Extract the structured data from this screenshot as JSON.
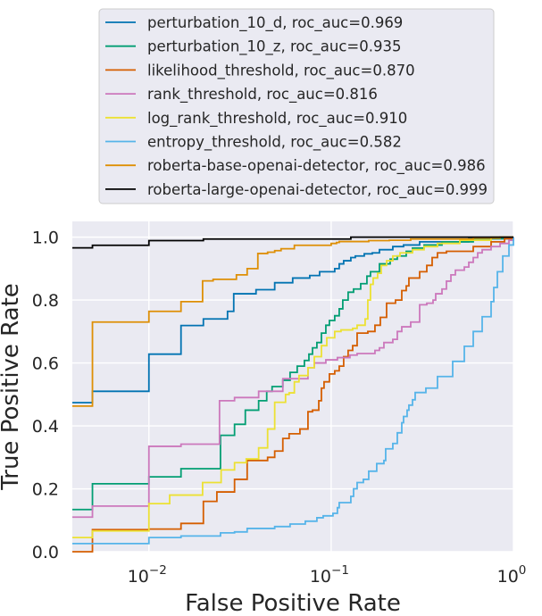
{
  "chart_data": {
    "type": "line",
    "title": "",
    "xlabel": "False Positive Rate",
    "ylabel": "True Positive Rate",
    "xscale": "log",
    "xlim": [
      0.0038,
      1.0
    ],
    "ylim": [
      0.0,
      1.05
    ],
    "grid": true,
    "legend_position": "top (above plot)",
    "background": "#eaeaf2",
    "x_ticks": [
      {
        "value": 0.01,
        "base": "10",
        "exp": "−2"
      },
      {
        "value": 0.1,
        "base": "10",
        "exp": "−1"
      },
      {
        "value": 1.0,
        "base": "10",
        "exp": "0"
      }
    ],
    "y_ticks": [
      {
        "value": 0.0,
        "label": "0.0"
      },
      {
        "value": 0.2,
        "label": "0.2"
      },
      {
        "value": 0.4,
        "label": "0.4"
      },
      {
        "value": 0.6,
        "label": "0.6"
      },
      {
        "value": 0.8,
        "label": "0.8"
      },
      {
        "value": 1.0,
        "label": "1.0"
      }
    ],
    "series": [
      {
        "name": "perturbation_10_d",
        "legend": "perturbation_10_d, roc_auc=0.969",
        "roc_auc": 0.969,
        "color": "#0173b2",
        "points": [
          [
            0.0038,
            0.474
          ],
          [
            0.0049,
            0.51
          ],
          [
            0.01,
            0.628
          ],
          [
            0.015,
            0.719
          ],
          [
            0.0199,
            0.74
          ],
          [
            0.027,
            0.764
          ],
          [
            0.0292,
            0.82
          ],
          [
            0.0387,
            0.833
          ],
          [
            0.049,
            0.855
          ],
          [
            0.0615,
            0.87
          ],
          [
            0.0763,
            0.878
          ],
          [
            0.0864,
            0.89
          ],
          [
            0.1046,
            0.9
          ],
          [
            0.1107,
            0.915
          ],
          [
            0.1171,
            0.925
          ],
          [
            0.1282,
            0.935
          ],
          [
            0.1357,
            0.94
          ],
          [
            0.1519,
            0.947
          ],
          [
            0.1681,
            0.95
          ],
          [
            0.184,
            0.96
          ],
          [
            0.2179,
            0.97
          ],
          [
            0.2495,
            0.975
          ],
          [
            0.3058,
            0.985
          ],
          [
            0.569,
            0.995
          ],
          [
            1.0,
            1.0
          ]
        ]
      },
      {
        "name": "perturbation_10_z",
        "legend": "perturbation_10_z, roc_auc=0.935",
        "roc_auc": 0.935,
        "color": "#029e73",
        "points": [
          [
            0.0038,
            0.134
          ],
          [
            0.0049,
            0.216
          ],
          [
            0.01,
            0.238
          ],
          [
            0.015,
            0.264
          ],
          [
            0.0247,
            0.37
          ],
          [
            0.0295,
            0.405
          ],
          [
            0.0338,
            0.45
          ],
          [
            0.04,
            0.48
          ],
          [
            0.0443,
            0.51
          ],
          [
            0.0474,
            0.525
          ],
          [
            0.0543,
            0.545
          ],
          [
            0.0595,
            0.57
          ],
          [
            0.0651,
            0.59
          ],
          [
            0.0713,
            0.608
          ],
          [
            0.0755,
            0.628
          ],
          [
            0.079,
            0.648
          ],
          [
            0.0835,
            0.665
          ],
          [
            0.0884,
            0.695
          ],
          [
            0.0935,
            0.72
          ],
          [
            0.0978,
            0.735
          ],
          [
            0.1046,
            0.75
          ],
          [
            0.1107,
            0.772
          ],
          [
            0.1158,
            0.8
          ],
          [
            0.1239,
            0.825
          ],
          [
            0.1327,
            0.835
          ],
          [
            0.1452,
            0.852
          ],
          [
            0.1571,
            0.876
          ],
          [
            0.1643,
            0.89
          ],
          [
            0.184,
            0.915
          ],
          [
            0.2107,
            0.93
          ],
          [
            0.2306,
            0.94
          ],
          [
            0.2581,
            0.955
          ],
          [
            0.2794,
            0.965
          ],
          [
            0.3235,
            0.975
          ],
          [
            0.4055,
            0.985
          ],
          [
            0.6019,
            0.995
          ],
          [
            1.0,
            1.0
          ]
        ]
      },
      {
        "name": "likelihood_threshold",
        "legend": "likelihood_threshold, roc_auc=0.870",
        "roc_auc": 0.87,
        "color": "#d55e00",
        "points": [
          [
            0.0038,
            0.0
          ],
          [
            0.0049,
            0.07
          ],
          [
            0.01,
            0.072
          ],
          [
            0.015,
            0.09
          ],
          [
            0.0199,
            0.16
          ],
          [
            0.0236,
            0.19
          ],
          [
            0.0295,
            0.23
          ],
          [
            0.0346,
            0.29
          ],
          [
            0.0448,
            0.3
          ],
          [
            0.049,
            0.32
          ],
          [
            0.0543,
            0.36
          ],
          [
            0.0588,
            0.375
          ],
          [
            0.0674,
            0.39
          ],
          [
            0.0746,
            0.445
          ],
          [
            0.079,
            0.45
          ],
          [
            0.0855,
            0.48
          ],
          [
            0.0884,
            0.52
          ],
          [
            0.0914,
            0.54
          ],
          [
            0.0978,
            0.565
          ],
          [
            0.1046,
            0.575
          ],
          [
            0.1107,
            0.59
          ],
          [
            0.1171,
            0.62
          ],
          [
            0.1239,
            0.64
          ],
          [
            0.1312,
            0.655
          ],
          [
            0.1388,
            0.695
          ],
          [
            0.1589,
            0.7
          ],
          [
            0.1739,
            0.72
          ],
          [
            0.1861,
            0.745
          ],
          [
            0.2014,
            0.79
          ],
          [
            0.2254,
            0.8
          ],
          [
            0.244,
            0.83
          ],
          [
            0.2581,
            0.845
          ],
          [
            0.267,
            0.87
          ],
          [
            0.3058,
            0.89
          ],
          [
            0.3347,
            0.91
          ],
          [
            0.3581,
            0.935
          ],
          [
            0.3831,
            0.95
          ],
          [
            0.429,
            0.955
          ],
          [
            0.6019,
            0.97
          ],
          [
            0.7542,
            0.985
          ],
          [
            0.8937,
            0.995
          ],
          [
            1.0,
            1.0
          ]
        ]
      },
      {
        "name": "rank_threshold",
        "legend": "rank_threshold, roc_auc=0.816",
        "roc_auc": 0.816,
        "color": "#cc78bc",
        "points": [
          [
            0.0038,
            0.11
          ],
          [
            0.0049,
            0.145
          ],
          [
            0.01,
            0.335
          ],
          [
            0.015,
            0.342
          ],
          [
            0.0244,
            0.48
          ],
          [
            0.0295,
            0.49
          ],
          [
            0.04,
            0.51
          ],
          [
            0.0543,
            0.55
          ],
          [
            0.0746,
            0.585
          ],
          [
            0.0808,
            0.6
          ],
          [
            0.0935,
            0.61
          ],
          [
            0.1082,
            0.617
          ],
          [
            0.1268,
            0.625
          ],
          [
            0.1388,
            0.63
          ],
          [
            0.1739,
            0.64
          ],
          [
            0.184,
            0.648
          ],
          [
            0.1947,
            0.665
          ],
          [
            0.2179,
            0.675
          ],
          [
            0.2306,
            0.7
          ],
          [
            0.244,
            0.715
          ],
          [
            0.2731,
            0.73
          ],
          [
            0.3058,
            0.785
          ],
          [
            0.3347,
            0.79
          ],
          [
            0.3622,
            0.8
          ],
          [
            0.3746,
            0.82
          ],
          [
            0.4055,
            0.835
          ],
          [
            0.429,
            0.86
          ],
          [
            0.454,
            0.88
          ],
          [
            0.4803,
            0.895
          ],
          [
            0.5377,
            0.905
          ],
          [
            0.569,
            0.92
          ],
          [
            0.6019,
            0.935
          ],
          [
            0.6368,
            0.95
          ],
          [
            0.6737,
            0.96
          ],
          [
            0.7542,
            0.97
          ],
          [
            0.8445,
            0.98
          ],
          [
            0.9452,
            0.99
          ],
          [
            1.0,
            1.0
          ]
        ]
      },
      {
        "name": "log_rank_threshold",
        "legend": "log_rank_threshold, roc_auc=0.910",
        "roc_auc": 0.91,
        "color": "#ece133",
        "points": [
          [
            0.0038,
            0.045
          ],
          [
            0.0049,
            0.066
          ],
          [
            0.01,
            0.153
          ],
          [
            0.013,
            0.18
          ],
          [
            0.0197,
            0.22
          ],
          [
            0.0249,
            0.26
          ],
          [
            0.0295,
            0.283
          ],
          [
            0.0342,
            0.295
          ],
          [
            0.04,
            0.33
          ],
          [
            0.0448,
            0.39
          ],
          [
            0.049,
            0.475
          ],
          [
            0.0562,
            0.5
          ],
          [
            0.0588,
            0.505
          ],
          [
            0.0628,
            0.54
          ],
          [
            0.0666,
            0.56
          ],
          [
            0.0746,
            0.585
          ],
          [
            0.0808,
            0.62
          ],
          [
            0.0884,
            0.655
          ],
          [
            0.0946,
            0.68
          ],
          [
            0.1046,
            0.7
          ],
          [
            0.1132,
            0.705
          ],
          [
            0.1312,
            0.71
          ],
          [
            0.1388,
            0.72
          ],
          [
            0.1536,
            0.74
          ],
          [
            0.1589,
            0.8
          ],
          [
            0.1643,
            0.85
          ],
          [
            0.17,
            0.87
          ],
          [
            0.1798,
            0.885
          ],
          [
            0.1882,
            0.91
          ],
          [
            0.2014,
            0.925
          ],
          [
            0.2179,
            0.94
          ],
          [
            0.2385,
            0.95
          ],
          [
            0.2794,
            0.96
          ],
          [
            0.3235,
            0.97
          ],
          [
            0.3831,
            0.98
          ],
          [
            0.5082,
            0.99
          ],
          [
            0.7542,
            1.0
          ],
          [
            1.0,
            1.0
          ]
        ]
      },
      {
        "name": "entropy_threshold",
        "legend": "entropy_threshold, roc_auc=0.582",
        "roc_auc": 0.582,
        "color": "#56b4e9",
        "points": [
          [
            0.0038,
            0.026
          ],
          [
            0.01,
            0.045
          ],
          [
            0.015,
            0.05
          ],
          [
            0.0247,
            0.06
          ],
          [
            0.0295,
            0.063
          ],
          [
            0.0346,
            0.074
          ],
          [
            0.049,
            0.08
          ],
          [
            0.0595,
            0.088
          ],
          [
            0.0721,
            0.097
          ],
          [
            0.0835,
            0.108
          ],
          [
            0.0904,
            0.114
          ],
          [
            0.1023,
            0.122
          ],
          [
            0.1082,
            0.14
          ],
          [
            0.1107,
            0.156
          ],
          [
            0.1282,
            0.176
          ],
          [
            0.1327,
            0.2
          ],
          [
            0.1388,
            0.22
          ],
          [
            0.1502,
            0.23
          ],
          [
            0.1607,
            0.256
          ],
          [
            0.1778,
            0.28
          ],
          [
            0.1947,
            0.29
          ],
          [
            0.1991,
            0.327
          ],
          [
            0.2179,
            0.344
          ],
          [
            0.2306,
            0.378
          ],
          [
            0.244,
            0.41
          ],
          [
            0.2495,
            0.43
          ],
          [
            0.261,
            0.45
          ],
          [
            0.267,
            0.466
          ],
          [
            0.2794,
            0.483
          ],
          [
            0.289,
            0.506
          ],
          [
            0.3309,
            0.52
          ],
          [
            0.3831,
            0.557
          ],
          [
            0.4642,
            0.605
          ],
          [
            0.5377,
            0.653
          ],
          [
            0.6019,
            0.7
          ],
          [
            0.6737,
            0.747
          ],
          [
            0.7542,
            0.795
          ],
          [
            0.7801,
            0.84
          ],
          [
            0.8163,
            0.89
          ],
          [
            0.8737,
            0.94
          ],
          [
            0.9452,
            0.975
          ],
          [
            1.0,
            1.0
          ]
        ]
      },
      {
        "name": "roberta-base-openai-detector",
        "legend": "roberta-base-openai-detector, roc_auc=0.986",
        "roc_auc": 0.986,
        "color": "#de8f05",
        "points": [
          [
            0.0038,
            0.463
          ],
          [
            0.0049,
            0.73
          ],
          [
            0.01,
            0.764
          ],
          [
            0.015,
            0.795
          ],
          [
            0.0197,
            0.861
          ],
          [
            0.0225,
            0.866
          ],
          [
            0.0302,
            0.88
          ],
          [
            0.0346,
            0.9
          ],
          [
            0.0396,
            0.948
          ],
          [
            0.0448,
            0.952
          ],
          [
            0.049,
            0.957
          ],
          [
            0.0531,
            0.963
          ],
          [
            0.0628,
            0.974
          ],
          [
            0.1,
            0.98
          ],
          [
            0.107,
            0.983
          ],
          [
            0.1107,
            0.986
          ],
          [
            0.1607,
            0.989
          ],
          [
            0.2083,
            0.99
          ],
          [
            0.2731,
            0.994
          ],
          [
            0.6019,
            0.997
          ],
          [
            0.8445,
            1.0
          ],
          [
            1.0,
            1.0
          ]
        ]
      },
      {
        "name": "roberta-large-openai-detector",
        "legend": "roberta-large-openai-detector, roc_auc=0.999",
        "roc_auc": 0.999,
        "color": "#000000",
        "points": [
          [
            0.0038,
            0.966
          ],
          [
            0.0049,
            0.974
          ],
          [
            0.01,
            0.989
          ],
          [
            0.0199,
            0.994
          ],
          [
            0.1282,
            1.0
          ],
          [
            1.0,
            1.0
          ]
        ]
      }
    ]
  }
}
